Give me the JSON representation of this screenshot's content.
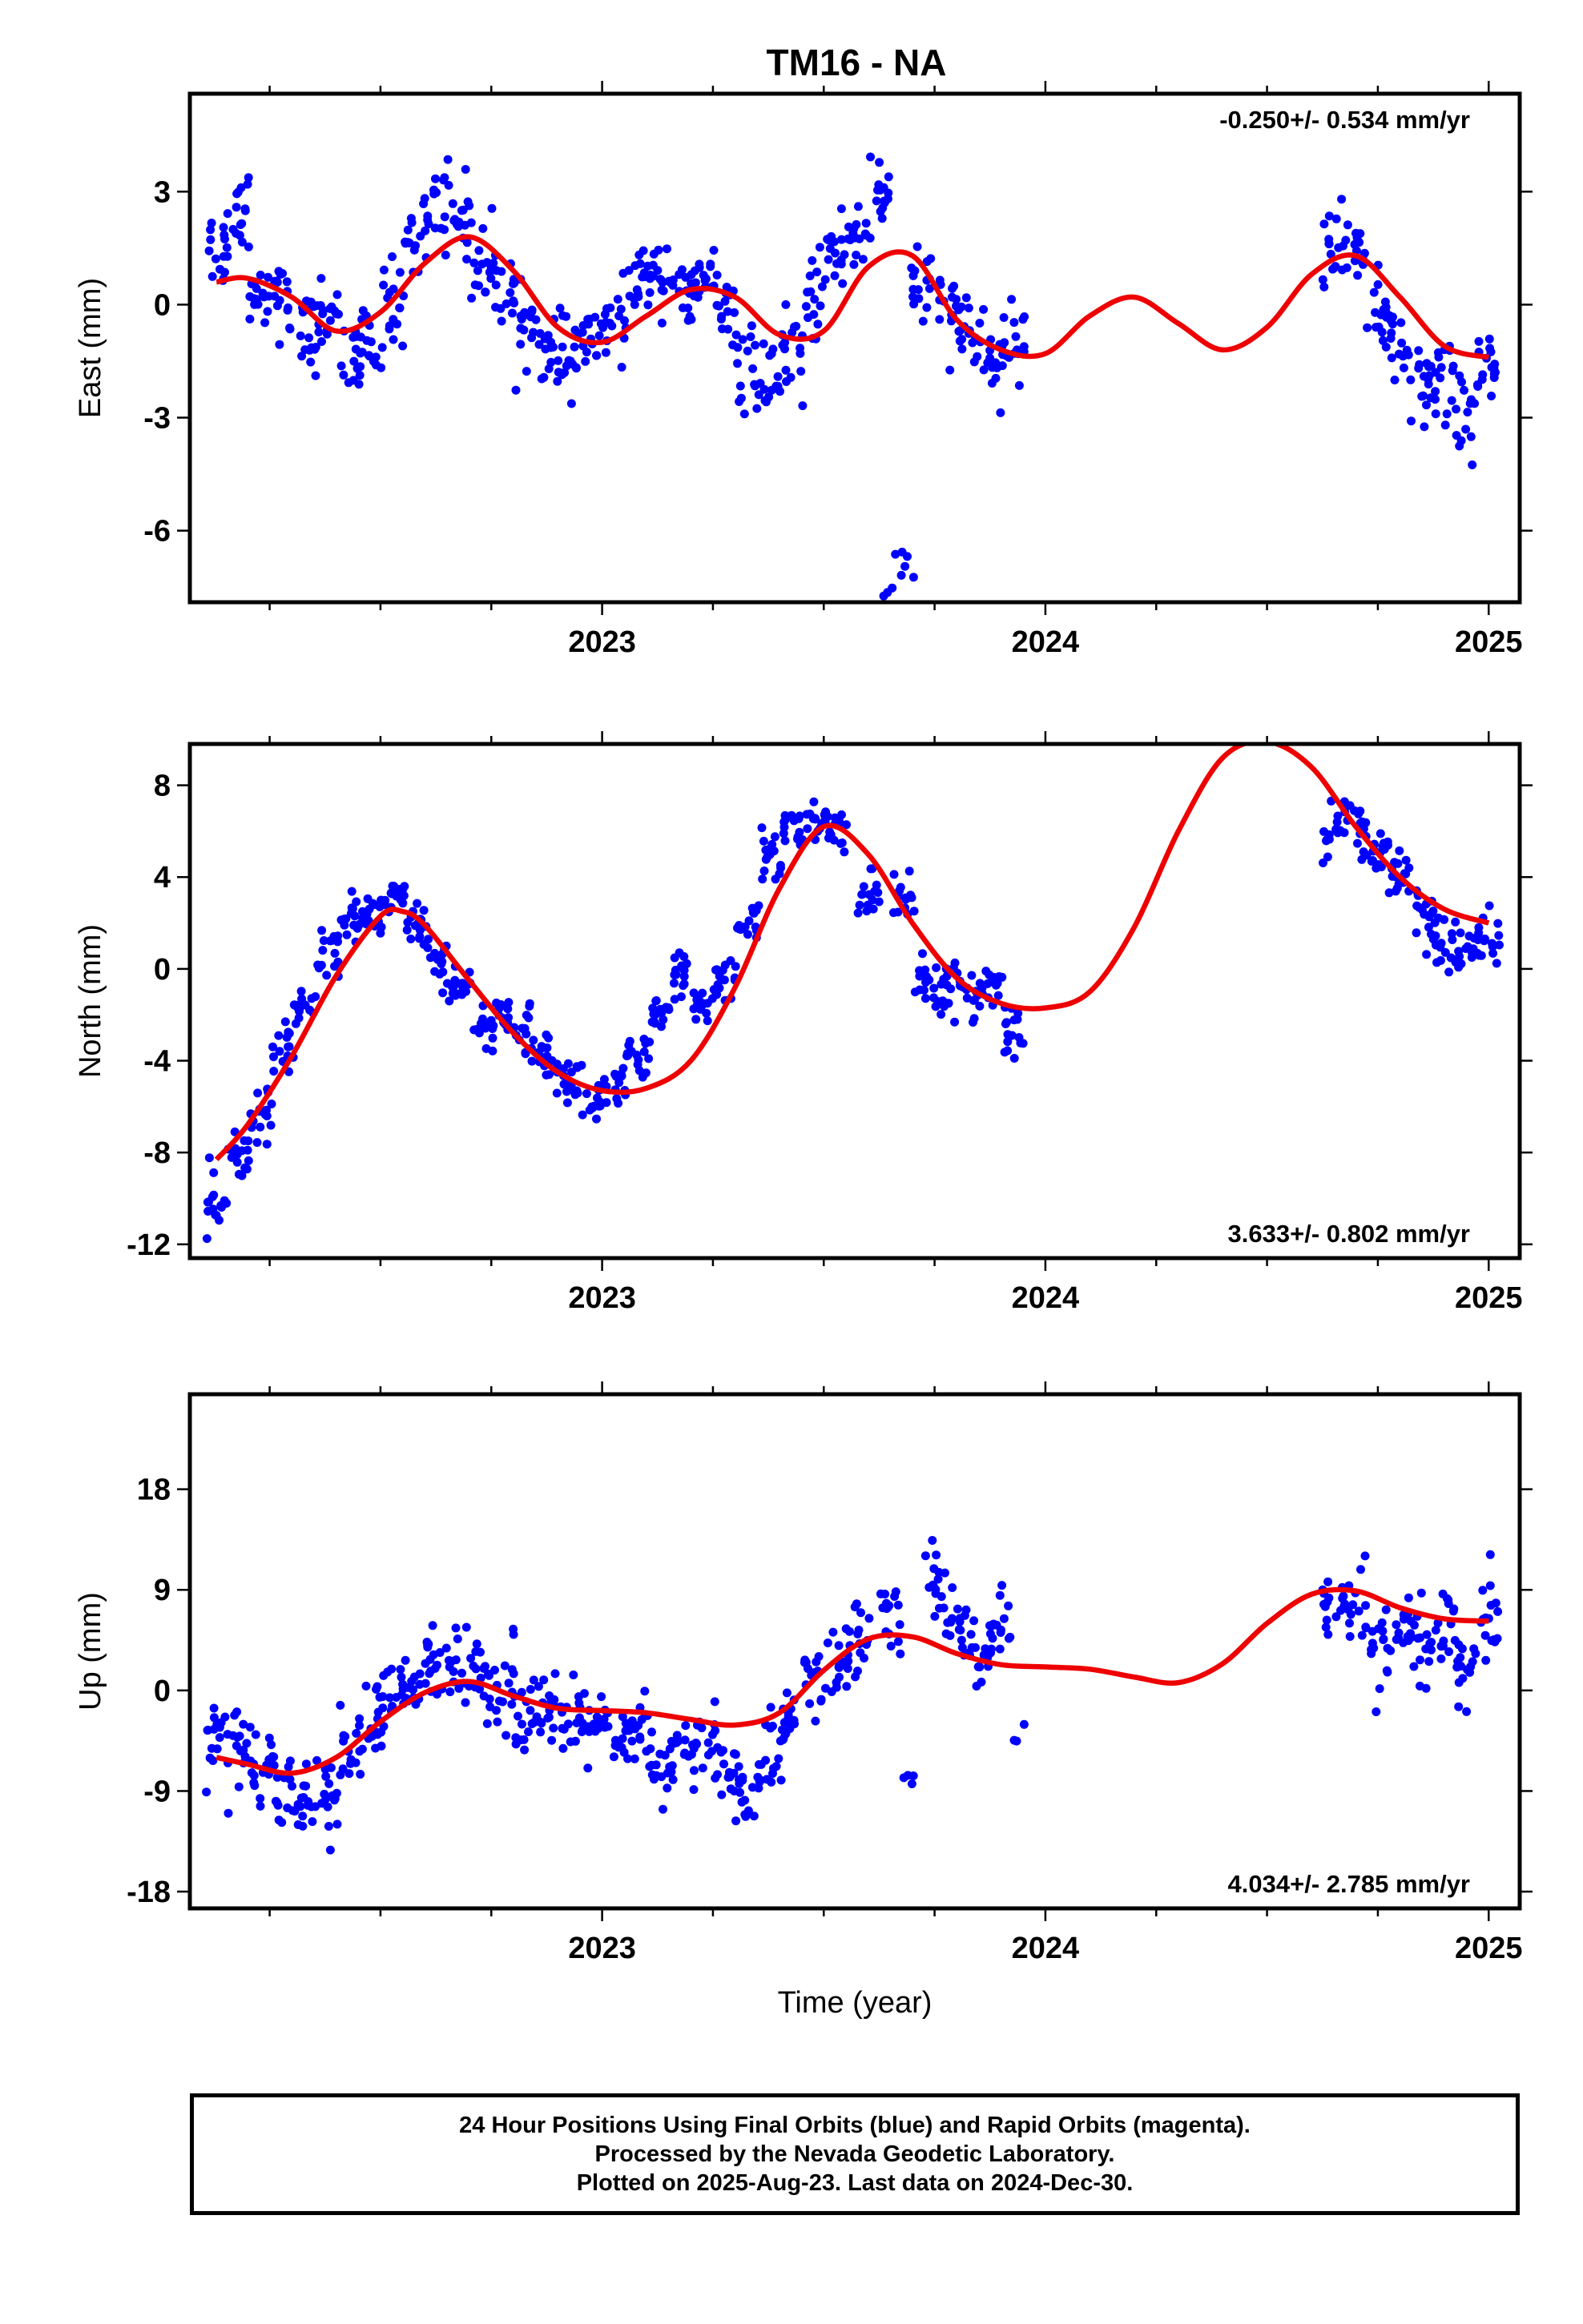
{
  "title": "TM16 - NA",
  "colors": {
    "points": "#0000ff",
    "fit": "#ee0000",
    "frame": "#000000"
  },
  "caption": {
    "line1": "24 Hour Positions Using Final Orbits (blue) and Rapid Orbits (magenta).",
    "line2": "Processed by the Nevada Geodetic Laboratory.",
    "line3": "Plotted on 2025-Aug-23. Last data on 2024-Dec-30."
  },
  "chart_data": [
    {
      "type": "scatter",
      "ylabel": "East (mm)",
      "xlabel": "",
      "xlim": [
        2022.07,
        2025.07
      ],
      "ylim": [
        -7.9,
        5.6
      ],
      "xticks": [
        2023,
        2024,
        2025
      ],
      "xtick_labels": [
        "2023",
        "2024",
        "2025"
      ],
      "yticks": [
        -6,
        -3,
        0,
        3
      ],
      "ytick_labels": [
        "-6",
        "-3",
        "0",
        "3"
      ],
      "rate_label": "-0.250+/- 0.534 mm/yr",
      "rate_position": "top-right",
      "fit": {
        "x": [
          2022.13,
          2022.2,
          2022.3,
          2022.4,
          2022.5,
          2022.6,
          2022.7,
          2022.8,
          2022.9,
          2023.0,
          2023.1,
          2023.2,
          2023.3,
          2023.4,
          2023.5,
          2023.6,
          2023.7,
          2023.8,
          2023.9,
          2024.0,
          2024.1,
          2024.2,
          2024.3,
          2024.4,
          2024.5,
          2024.6,
          2024.7,
          2024.8,
          2024.9,
          2025.0
        ],
        "y": [
          0.6,
          0.7,
          0.2,
          -0.7,
          -0.2,
          1.1,
          1.8,
          0.9,
          -0.6,
          -1.0,
          -0.3,
          0.4,
          0.2,
          -0.8,
          -0.7,
          1.0,
          1.3,
          -0.4,
          -1.2,
          -1.3,
          -0.3,
          0.2,
          -0.5,
          -1.2,
          -0.6,
          0.8,
          1.3,
          0.2,
          -1.1,
          -1.4
        ]
      },
      "series": [
        {
          "x": [
            2022.13,
            2022.18,
            2022.23,
            2022.28,
            2022.33,
            2022.38,
            2022.43,
            2022.48,
            2022.53,
            2022.58,
            2022.63,
            2022.68,
            2022.73,
            2022.78,
            2022.83,
            2022.88,
            2022.93,
            2022.98,
            2023.03,
            2023.08,
            2023.13,
            2023.18,
            2023.23,
            2023.28,
            2023.33,
            2023.38,
            2023.43,
            2023.48,
            2023.53,
            2023.58,
            2023.63,
            2023.66,
            2023.68,
            2023.72,
            2023.78,
            2023.83,
            2023.88,
            2023.93,
            2024.65,
            2024.7,
            2024.75,
            2024.8,
            2024.85,
            2024.9,
            2024.95,
            2025.0
          ],
          "y": [
            1.5,
            2.6,
            0.4,
            0.1,
            -0.8,
            -0.2,
            -1.4,
            -1.2,
            0.1,
            1.8,
            2.7,
            2.3,
            1.0,
            0.5,
            -0.6,
            -1.3,
            -1.4,
            -0.9,
            -0.5,
            0.6,
            0.9,
            0.1,
            0.7,
            -0.4,
            -1.6,
            -2.3,
            -1.3,
            0.2,
            1.4,
            1.8,
            3.1,
            -7.6,
            -6.9,
            0.4,
            -0.2,
            -0.8,
            -1.6,
            -1.0,
            1.5,
            1.7,
            -0.3,
            -1.2,
            -2.0,
            -2.1,
            -2.8,
            -1.6
          ],
          "spread": [
            0.9,
            1.0,
            0.8,
            0.8,
            0.8,
            0.9,
            0.9,
            0.9,
            0.9,
            1.0,
            1.0,
            1.0,
            0.9,
            0.9,
            0.8,
            0.8,
            0.8,
            0.8,
            0.8,
            0.8,
            0.8,
            0.8,
            0.8,
            0.9,
            0.9,
            0.9,
            0.9,
            1.0,
            1.0,
            1.1,
            1.1,
            0.5,
            0.5,
            0.9,
            0.9,
            0.8,
            0.8,
            0.8,
            0.9,
            0.9,
            0.9,
            0.9,
            1.0,
            1.0,
            1.0,
            1.0
          ],
          "count": [
            16,
            16,
            16,
            16,
            16,
            16,
            16,
            16,
            16,
            16,
            16,
            16,
            16,
            16,
            16,
            16,
            16,
            16,
            16,
            16,
            16,
            16,
            16,
            16,
            16,
            16,
            16,
            16,
            16,
            16,
            16,
            5,
            5,
            16,
            16,
            16,
            16,
            16,
            16,
            16,
            16,
            16,
            16,
            16,
            16,
            16
          ]
        }
      ]
    },
    {
      "type": "scatter",
      "ylabel": "North (mm)",
      "xlabel": "",
      "xlim": [
        2022.07,
        2025.07
      ],
      "ylim": [
        -12.6,
        9.8
      ],
      "xticks": [
        2023,
        2024,
        2025
      ],
      "xtick_labels": [
        "2023",
        "2024",
        "2025"
      ],
      "yticks": [
        -12,
        -8,
        -4,
        0,
        4,
        8
      ],
      "ytick_labels": [
        "-12",
        "-8",
        "-4",
        "0",
        "4",
        "8"
      ],
      "rate_label": "3.633+/- 0.802 mm/yr",
      "rate_position": "bottom-right",
      "fit": {
        "x": [
          2022.13,
          2022.2,
          2022.3,
          2022.4,
          2022.5,
          2022.55,
          2022.6,
          2022.7,
          2022.8,
          2022.9,
          2023.0,
          2023.1,
          2023.2,
          2023.3,
          2023.4,
          2023.5,
          2023.6,
          2023.7,
          2023.8,
          2023.9,
          2024.0,
          2024.1,
          2024.2,
          2024.3,
          2024.4,
          2024.5,
          2024.6,
          2024.7,
          2024.8,
          2024.9,
          2025.0
        ],
        "y": [
          -8.3,
          -6.8,
          -3.8,
          -0.3,
          2.3,
          2.5,
          1.9,
          -0.5,
          -2.8,
          -4.5,
          -5.3,
          -5.2,
          -4.0,
          -0.8,
          3.5,
          6.2,
          5.0,
          2.0,
          -0.4,
          -1.5,
          -1.7,
          -1.0,
          1.8,
          6.0,
          9.2,
          9.9,
          8.8,
          6.2,
          4.0,
          2.6,
          2.0
        ]
      },
      "series": [
        {
          "x": [
            2022.13,
            2022.18,
            2022.23,
            2022.28,
            2022.33,
            2022.38,
            2022.43,
            2022.48,
            2022.53,
            2022.58,
            2022.63,
            2022.68,
            2022.73,
            2022.78,
            2022.83,
            2022.88,
            2022.93,
            2022.98,
            2023.03,
            2023.08,
            2023.13,
            2023.18,
            2023.23,
            2023.28,
            2023.33,
            2023.38,
            2023.43,
            2023.48,
            2023.53,
            2023.6,
            2023.68,
            2023.73,
            2023.78,
            2023.83,
            2023.88,
            2023.93,
            2024.65,
            2024.7,
            2024.75,
            2024.8,
            2024.85,
            2024.9,
            2024.95,
            2025.0
          ],
          "y": [
            -10.5,
            -8.0,
            -6.5,
            -3.5,
            -1.8,
            0.8,
            2.0,
            2.5,
            3.2,
            2.0,
            0.5,
            -0.9,
            -2.5,
            -2.0,
            -2.8,
            -4.0,
            -4.8,
            -5.8,
            -5.3,
            -4.0,
            -2.2,
            -0.5,
            -1.5,
            -0.5,
            2.0,
            5.0,
            6.0,
            6.5,
            5.8,
            3.0,
            3.2,
            -0.3,
            -0.9,
            -1.3,
            -0.8,
            -2.5,
            6.0,
            6.2,
            5.0,
            3.8,
            2.2,
            1.2,
            0.6,
            1.5
          ],
          "spread": [
            1.2,
            1.0,
            0.9,
            0.9,
            0.9,
            0.9,
            0.9,
            0.9,
            0.9,
            0.9,
            0.9,
            0.9,
            0.9,
            0.9,
            0.9,
            0.9,
            0.9,
            0.9,
            0.9,
            0.9,
            0.9,
            0.9,
            0.9,
            0.9,
            0.9,
            0.9,
            0.8,
            0.8,
            0.8,
            1.0,
            1.1,
            1.0,
            0.9,
            0.9,
            0.9,
            1.1,
            1.0,
            1.0,
            1.0,
            1.0,
            1.0,
            1.0,
            1.0,
            1.0
          ],
          "count": [
            16,
            16,
            16,
            16,
            16,
            16,
            16,
            16,
            16,
            16,
            16,
            16,
            16,
            16,
            16,
            16,
            16,
            16,
            16,
            16,
            16,
            16,
            16,
            16,
            16,
            16,
            16,
            16,
            16,
            16,
            16,
            16,
            16,
            16,
            16,
            16,
            16,
            16,
            16,
            16,
            16,
            16,
            16,
            16
          ]
        }
      ]
    },
    {
      "type": "scatter",
      "ylabel": "Up (mm)",
      "xlabel": "Time (year)",
      "xlim": [
        2022.07,
        2025.07
      ],
      "ylim": [
        -19.5,
        26.5
      ],
      "xticks": [
        2023,
        2024,
        2025
      ],
      "xtick_labels": [
        "2023",
        "2024",
        "2025"
      ],
      "yticks": [
        -18,
        -9,
        0,
        9,
        18
      ],
      "ytick_labels": [
        "-18",
        "-9",
        "0",
        "9",
        "18"
      ],
      "rate_label": "4.034+/- 2.785 mm/yr",
      "rate_position": "bottom-right",
      "fit": {
        "x": [
          2022.13,
          2022.2,
          2022.3,
          2022.4,
          2022.5,
          2022.6,
          2022.7,
          2022.8,
          2022.9,
          2023.0,
          2023.1,
          2023.2,
          2023.3,
          2023.4,
          2023.5,
          2023.6,
          2023.7,
          2023.8,
          2023.9,
          2024.0,
          2024.1,
          2024.2,
          2024.3,
          2024.4,
          2024.5,
          2024.6,
          2024.7,
          2024.8,
          2024.9,
          2025.0
        ],
        "y": [
          -6.0,
          -6.6,
          -7.4,
          -6.0,
          -2.8,
          -0.2,
          0.8,
          -0.5,
          -1.6,
          -1.8,
          -2.0,
          -2.6,
          -3.1,
          -2.0,
          1.8,
          4.6,
          4.8,
          3.3,
          2.3,
          2.1,
          1.9,
          1.2,
          0.7,
          2.4,
          6.0,
          8.6,
          8.9,
          7.4,
          6.4,
          6.2
        ]
      },
      "series": [
        {
          "x": [
            2022.13,
            2022.18,
            2022.23,
            2022.28,
            2022.33,
            2022.38,
            2022.43,
            2022.48,
            2022.53,
            2022.58,
            2022.63,
            2022.68,
            2022.73,
            2022.78,
            2022.83,
            2022.88,
            2022.93,
            2022.98,
            2023.03,
            2023.08,
            2023.13,
            2023.18,
            2023.23,
            2023.28,
            2023.33,
            2023.38,
            2023.43,
            2023.48,
            2023.53,
            2023.58,
            2023.65,
            2023.7,
            2023.75,
            2023.8,
            2023.85,
            2023.9,
            2023.95,
            2024.65,
            2024.7,
            2024.75,
            2024.8,
            2024.85,
            2024.9,
            2024.95,
            2025.0
          ],
          "y": [
            -4.0,
            -5.0,
            -6.5,
            -8.0,
            -10.0,
            -9.0,
            -5.5,
            -3.0,
            -1.0,
            0.5,
            2.0,
            3.0,
            1.5,
            0.5,
            -2.0,
            -1.5,
            -3.5,
            -2.5,
            -5.0,
            -4.0,
            -7.0,
            -6.0,
            -4.5,
            -7.5,
            -9.0,
            -6.0,
            -3.0,
            1.0,
            2.5,
            4.0,
            7.0,
            -8.0,
            9.0,
            6.0,
            3.5,
            5.5,
            -4.5,
            6.5,
            7.5,
            3.5,
            4.5,
            4.0,
            5.0,
            1.0,
            6.5
          ],
          "spread": [
            3.0,
            3.0,
            3.0,
            3.0,
            3.0,
            3.0,
            3.0,
            3.0,
            3.0,
            3.2,
            3.2,
            3.2,
            3.2,
            3.2,
            3.0,
            3.0,
            3.0,
            3.0,
            3.0,
            3.0,
            3.0,
            3.0,
            3.0,
            3.0,
            3.2,
            3.0,
            3.0,
            3.0,
            3.0,
            3.2,
            3.5,
            1.5,
            3.5,
            3.2,
            3.0,
            3.0,
            1.0,
            3.0,
            3.0,
            3.0,
            3.0,
            3.0,
            3.2,
            3.2,
            3.0
          ],
          "count": [
            16,
            16,
            16,
            16,
            16,
            16,
            16,
            16,
            16,
            16,
            16,
            16,
            16,
            16,
            16,
            16,
            16,
            16,
            16,
            16,
            16,
            16,
            16,
            16,
            16,
            16,
            16,
            16,
            16,
            16,
            16,
            4,
            16,
            16,
            16,
            16,
            3,
            16,
            16,
            16,
            16,
            16,
            16,
            16,
            16
          ]
        }
      ]
    }
  ]
}
